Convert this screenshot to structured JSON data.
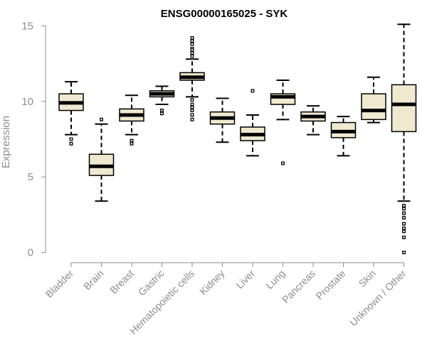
{
  "chart_data": {
    "type": "box",
    "title": "ENSG00000165025 - SYK",
    "ylabel": "Expression",
    "xlabel": "",
    "ylim": [
      -0.3,
      15.3
    ],
    "yticks": [
      0,
      5,
      10,
      15
    ],
    "grid": false,
    "box_fill": "#efe9d1",
    "box_stroke": "#000000",
    "categories": [
      "Bladder",
      "Brain",
      "Breast",
      "Gastric",
      "Hematopoietic cells",
      "Kidney",
      "Liver",
      "Lung",
      "Pancreas",
      "Prostate",
      "Skin",
      "Unknown / Other"
    ],
    "boxes": [
      {
        "whisker_low": 7.8,
        "q1": 9.4,
        "median": 9.9,
        "q3": 10.5,
        "whisker_high": 11.3,
        "outliers": [
          7.5,
          7.2
        ]
      },
      {
        "whisker_low": 3.4,
        "q1": 5.1,
        "median": 5.7,
        "q3": 6.5,
        "whisker_high": 8.5,
        "outliers": [
          8.8
        ]
      },
      {
        "whisker_low": 7.8,
        "q1": 8.7,
        "median": 9.1,
        "q3": 9.5,
        "whisker_high": 10.4,
        "outliers": [
          7.4,
          7.2
        ]
      },
      {
        "whisker_low": 9.8,
        "q1": 10.3,
        "median": 10.5,
        "q3": 10.7,
        "whisker_high": 11.0,
        "outliers": [
          9.4,
          9.2
        ]
      },
      {
        "whisker_low": 10.3,
        "q1": 11.4,
        "median": 11.6,
        "q3": 11.9,
        "whisker_high": 12.8,
        "outliers": [
          14.2,
          14.0,
          13.8,
          13.5,
          13.4,
          13.2,
          13.0,
          10.1,
          9.8,
          9.6,
          9.4,
          9.1,
          8.8
        ]
      },
      {
        "whisker_low": 7.3,
        "q1": 8.5,
        "median": 8.9,
        "q3": 9.3,
        "whisker_high": 10.2,
        "outliers": []
      },
      {
        "whisker_low": 6.4,
        "q1": 7.4,
        "median": 7.8,
        "q3": 8.3,
        "whisker_high": 9.1,
        "outliers": [
          10.7
        ]
      },
      {
        "whisker_low": 8.8,
        "q1": 9.8,
        "median": 10.3,
        "q3": 10.5,
        "whisker_high": 11.4,
        "outliers": [
          5.9
        ]
      },
      {
        "whisker_low": 7.8,
        "q1": 8.7,
        "median": 9.0,
        "q3": 9.3,
        "whisker_high": 9.7,
        "outliers": []
      },
      {
        "whisker_low": 6.4,
        "q1": 7.6,
        "median": 8.0,
        "q3": 8.6,
        "whisker_high": 9.0,
        "outliers": []
      },
      {
        "whisker_low": 8.6,
        "q1": 8.8,
        "median": 9.4,
        "q3": 10.5,
        "whisker_high": 11.6,
        "outliers": []
      },
      {
        "whisker_low": 3.4,
        "q1": 8.0,
        "median": 9.8,
        "q3": 11.1,
        "whisker_high": 15.1,
        "outliers": [
          3.1,
          2.9,
          2.6,
          2.3,
          1.9,
          1.6,
          1.4,
          1.0,
          0.0
        ]
      }
    ]
  }
}
